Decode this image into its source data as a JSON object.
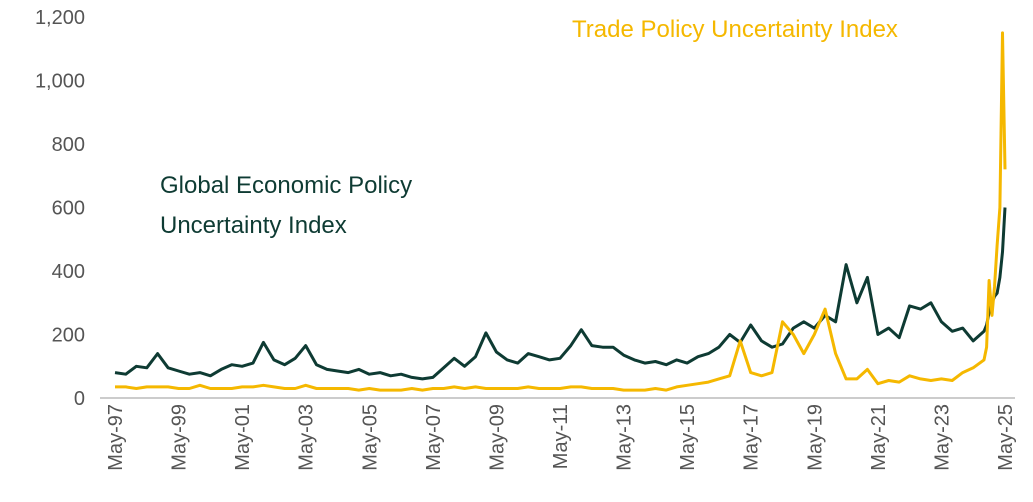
{
  "chart_data": {
    "type": "line",
    "x": [
      1997.33,
      1997.67,
      1998.0,
      1998.33,
      1998.67,
      1999.0,
      1999.33,
      1999.67,
      2000.0,
      2000.33,
      2000.67,
      2001.0,
      2001.33,
      2001.67,
      2002.0,
      2002.33,
      2002.67,
      2003.0,
      2003.33,
      2003.67,
      2004.0,
      2004.33,
      2004.67,
      2005.0,
      2005.33,
      2005.67,
      2006.0,
      2006.33,
      2006.67,
      2007.0,
      2007.33,
      2007.67,
      2008.0,
      2008.33,
      2008.67,
      2009.0,
      2009.33,
      2009.67,
      2010.0,
      2010.33,
      2010.67,
      2011.0,
      2011.33,
      2011.67,
      2012.0,
      2012.33,
      2012.67,
      2013.0,
      2013.33,
      2013.67,
      2014.0,
      2014.33,
      2014.67,
      2015.0,
      2015.33,
      2015.67,
      2016.0,
      2016.33,
      2016.67,
      2017.0,
      2017.33,
      2017.67,
      2018.0,
      2018.33,
      2018.67,
      2019.0,
      2019.33,
      2019.67,
      2020.0,
      2020.33,
      2020.67,
      2021.0,
      2021.33,
      2021.67,
      2022.0,
      2022.33,
      2022.67,
      2023.0,
      2023.33,
      2023.67,
      2024.0,
      2024.33,
      2024.67,
      2024.75,
      2024.83,
      2024.92,
      2025.0,
      2025.08,
      2025.17,
      2025.25,
      2025.33
    ],
    "series": [
      {
        "name": "Global Economic Policy Uncertainty Index",
        "color": "#0e3b33",
        "values": [
          80,
          75,
          100,
          95,
          140,
          95,
          85,
          75,
          80,
          70,
          90,
          105,
          100,
          110,
          175,
          120,
          105,
          125,
          165,
          105,
          90,
          85,
          80,
          90,
          75,
          80,
          70,
          75,
          65,
          60,
          65,
          95,
          125,
          100,
          130,
          205,
          145,
          120,
          110,
          140,
          130,
          120,
          125,
          165,
          215,
          165,
          160,
          160,
          135,
          120,
          110,
          115,
          105,
          120,
          110,
          130,
          140,
          160,
          200,
          175,
          230,
          180,
          160,
          170,
          220,
          240,
          220,
          260,
          240,
          420,
          300,
          380,
          200,
          220,
          190,
          290,
          280,
          300,
          240,
          210,
          220,
          180,
          210,
          230,
          270,
          300,
          320,
          330,
          380,
          460,
          600
        ]
      },
      {
        "name": "Trade Policy Uncertainty Index",
        "color": "#f5b800",
        "values": [
          35,
          35,
          30,
          35,
          35,
          35,
          30,
          30,
          40,
          30,
          30,
          30,
          35,
          35,
          40,
          35,
          30,
          30,
          40,
          30,
          30,
          30,
          30,
          25,
          30,
          25,
          25,
          25,
          30,
          25,
          30,
          30,
          35,
          30,
          35,
          30,
          30,
          30,
          30,
          35,
          30,
          30,
          30,
          35,
          35,
          30,
          30,
          30,
          25,
          25,
          25,
          30,
          25,
          35,
          40,
          45,
          50,
          60,
          70,
          180,
          80,
          70,
          80,
          240,
          200,
          140,
          200,
          280,
          140,
          60,
          60,
          90,
          45,
          55,
          50,
          70,
          60,
          55,
          60,
          55,
          80,
          95,
          120,
          160,
          370,
          260,
          350,
          480,
          600,
          1150,
          720
        ]
      }
    ],
    "xlim": [
      1997.33,
      2025.33
    ],
    "xticks": [
      {
        "value": 1997.33,
        "label": "May-97"
      },
      {
        "value": 1999.33,
        "label": "May-99"
      },
      {
        "value": 2001.33,
        "label": "May-01"
      },
      {
        "value": 2003.33,
        "label": "May-03"
      },
      {
        "value": 2005.33,
        "label": "May-05"
      },
      {
        "value": 2007.33,
        "label": "May-07"
      },
      {
        "value": 2009.33,
        "label": "May-09"
      },
      {
        "value": 2011.33,
        "label": "May-11"
      },
      {
        "value": 2013.33,
        "label": "May-13"
      },
      {
        "value": 2015.33,
        "label": "May-15"
      },
      {
        "value": 2017.33,
        "label": "May-17"
      },
      {
        "value": 2019.33,
        "label": "May-19"
      },
      {
        "value": 2021.33,
        "label": "May-21"
      },
      {
        "value": 2023.33,
        "label": "May-23"
      },
      {
        "value": 2025.33,
        "label": "May-25"
      }
    ],
    "ylim": [
      0,
      1200
    ],
    "yticks": [
      0,
      200,
      400,
      600,
      800,
      {
        "value": 1000,
        "label": "1,000"
      },
      {
        "value": 1200,
        "label": "1,200"
      }
    ]
  }
}
